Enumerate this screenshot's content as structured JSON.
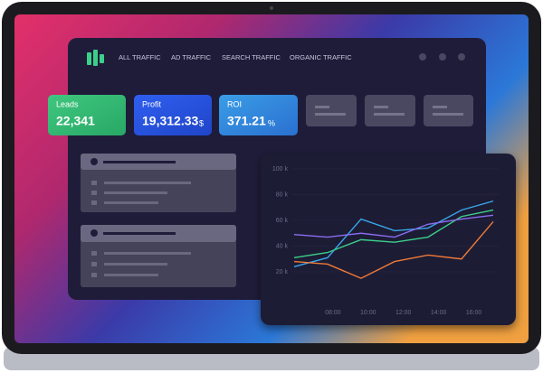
{
  "nav": {
    "items": [
      "ALL TRAFFIC",
      "AD TRAFFIC",
      "SEARCH TRAFFIC",
      "ORGANIC TRAFFIC"
    ]
  },
  "cards": [
    {
      "label": "Leads",
      "value": "22,341"
    },
    {
      "label": "Profit",
      "value": "19,312.33",
      "unit": "$"
    },
    {
      "label": "ROI",
      "value": "371.21",
      "unit": "%"
    }
  ],
  "chart_data": {
    "type": "line",
    "x": [
      5.8,
      7.7,
      9.6,
      11.5,
      13.4,
      15.3,
      17.1
    ],
    "series": [
      {
        "color": "#3aa6ea",
        "values": [
          24,
          31,
          61,
          52,
          54,
          68,
          75
        ]
      },
      {
        "color": "#3ccf8a",
        "values": [
          31,
          35,
          45,
          43,
          47,
          63,
          68
        ]
      },
      {
        "color": "#8b6cf0",
        "values": [
          49,
          47,
          50,
          47,
          57,
          61,
          64
        ]
      },
      {
        "color": "#f07a36",
        "values": [
          28,
          26,
          15,
          28,
          33,
          30,
          59
        ]
      }
    ],
    "xlim": [
      5.8,
      17.1
    ],
    "ylim": [
      0,
      100
    ],
    "xticks": [
      {
        "value": 8,
        "label": "08:00"
      },
      {
        "value": 10,
        "label": "10:00"
      },
      {
        "value": 12,
        "label": "12:00"
      },
      {
        "value": 14,
        "label": "14:00"
      },
      {
        "value": 16,
        "label": "16:00"
      }
    ],
    "yticks": [
      {
        "value": 20,
        "label": "20 k"
      },
      {
        "value": 40,
        "label": "40 k"
      },
      {
        "value": 60,
        "label": "60 k"
      },
      {
        "value": 80,
        "label": "80 k"
      },
      {
        "value": 100,
        "label": "100 k"
      }
    ],
    "grid": true
  }
}
